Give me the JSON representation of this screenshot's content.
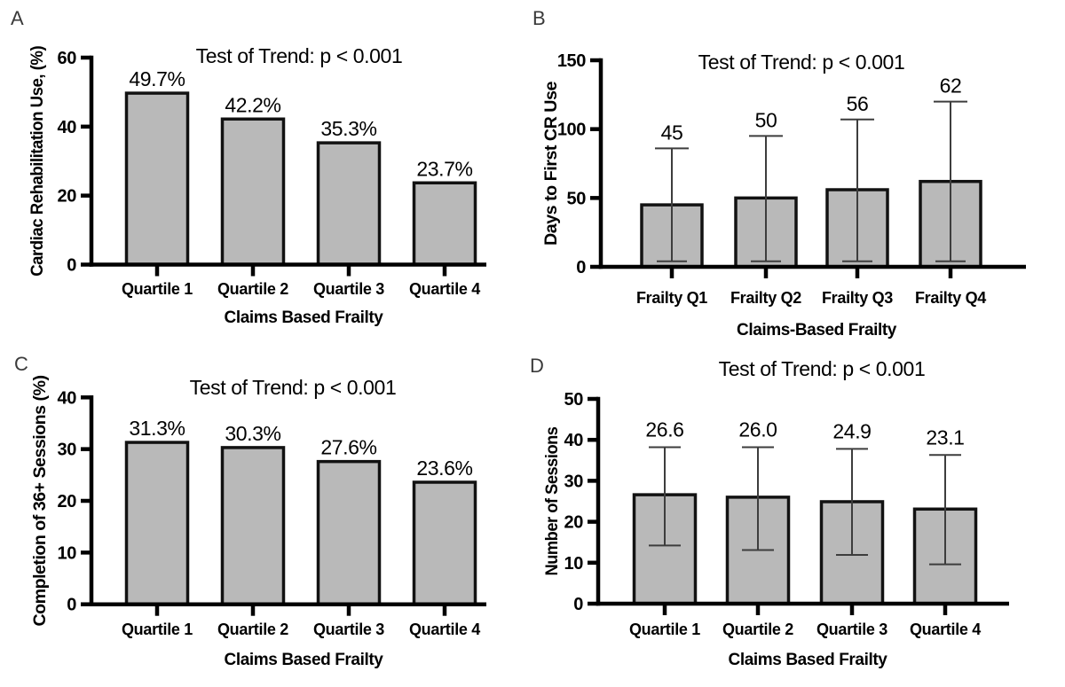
{
  "figure": {
    "background": "#ffffff",
    "bar_fill": "#b9b9b9",
    "bar_stroke": "#121212",
    "axis_color": "#000000",
    "error_color": "#3d3d3d",
    "panel_letter_color": "#3a3a3a",
    "panel_letters": [
      "A",
      "B",
      "C",
      "D"
    ]
  },
  "chart_data": [
    {
      "panel": "A",
      "type": "bar",
      "title": "Test of Trend: p < 0.001",
      "ylabel": "Cardiac Rehabilitation Use, (%)",
      "xlabel": "Claims Based Frailty",
      "categories": [
        "Quartile 1",
        "Quartile 2",
        "Quartile 3",
        "Quartile 4"
      ],
      "values": [
        49.7,
        42.2,
        35.3,
        23.7
      ],
      "bar_labels": [
        "49.7%",
        "42.2%",
        "35.3%",
        "23.7%"
      ],
      "ylim": [
        0,
        60
      ],
      "yticks": [
        0,
        20,
        40,
        60
      ],
      "grid": false,
      "legend": false
    },
    {
      "panel": "B",
      "type": "bar",
      "title": "Test of Trend: p < 0.001",
      "ylabel": "Days to First CR Use",
      "xlabel": "Claims-Based Frailty",
      "categories": [
        "Frailty Q1",
        "Frailty Q2",
        "Frailty Q3",
        "Frailty Q4"
      ],
      "values": [
        45,
        50,
        56,
        62
      ],
      "bar_labels": [
        "45",
        "50",
        "56",
        "62"
      ],
      "error_high": [
        86,
        95,
        107,
        120
      ],
      "error_low": [
        4,
        4,
        4,
        4
      ],
      "ylim": [
        0,
        150
      ],
      "yticks": [
        0,
        50,
        100,
        150
      ],
      "grid": false,
      "legend": false
    },
    {
      "panel": "C",
      "type": "bar",
      "title": "Test of Trend: p < 0.001",
      "ylabel": "Completion of 36+ Sessions (%)",
      "xlabel": "Claims Based Frailty",
      "categories": [
        "Quartile 1",
        "Quartile 2",
        "Quartile 3",
        "Quartile 4"
      ],
      "values": [
        31.3,
        30.3,
        27.6,
        23.6
      ],
      "bar_labels": [
        "31.3%",
        "30.3%",
        "27.6%",
        "23.6%"
      ],
      "ylim": [
        0,
        40
      ],
      "yticks": [
        0,
        10,
        20,
        30,
        40
      ],
      "grid": false,
      "legend": false
    },
    {
      "panel": "D",
      "type": "bar",
      "title": "Test of Trend: p < 0.001",
      "ylabel": "Number of Sessions",
      "xlabel": "Claims Based Frailty",
      "categories": [
        "Quartile 1",
        "Quartile 2",
        "Quartile 3",
        "Quartile 4"
      ],
      "values": [
        26.6,
        26.0,
        24.9,
        23.1
      ],
      "bar_labels": [
        "26.6",
        "26.0",
        "24.9",
        "23.1"
      ],
      "error_high": [
        38.2,
        38.2,
        37.8,
        36.3
      ],
      "error_low": [
        14.2,
        13.1,
        11.9,
        9.6
      ],
      "ylim": [
        0,
        50
      ],
      "yticks": [
        0,
        10,
        20,
        30,
        40,
        50
      ],
      "grid": false,
      "legend": false
    }
  ]
}
